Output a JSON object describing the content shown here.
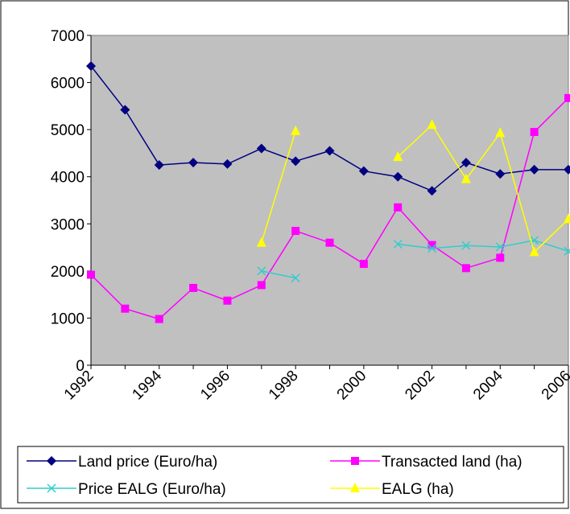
{
  "chart_data": {
    "type": "line",
    "categories": [
      "1992",
      null,
      "1994",
      null,
      "1996",
      null,
      "1998",
      null,
      "2000",
      null,
      "2002",
      null,
      "2004",
      null,
      "2006"
    ],
    "series": [
      {
        "name": "Land price (Euro/ha)",
        "color": "#000080",
        "marker": "diamond",
        "values": [
          6350,
          5420,
          4250,
          4300,
          4270,
          4600,
          4330,
          4550,
          4120,
          4000,
          3700,
          4300,
          4060,
          4150,
          4150
        ]
      },
      {
        "name": "Transacted land (ha)",
        "color": "#ff00ff",
        "marker": "square",
        "values": [
          1920,
          1200,
          980,
          1640,
          1370,
          1700,
          2850,
          2600,
          2150,
          3350,
          2550,
          2060,
          2280,
          4950,
          5670
        ]
      },
      {
        "name": "Price EALG (Euro/ha)",
        "color": "#33cccc",
        "marker": "x",
        "values": [
          null,
          null,
          null,
          null,
          null,
          2000,
          1850,
          null,
          null,
          2570,
          2480,
          2540,
          2510,
          2650,
          2420
        ]
      },
      {
        "name": "EALG (ha)",
        "color": "#ffff00",
        "marker": "triangle",
        "values": [
          null,
          null,
          null,
          null,
          null,
          2600,
          4970,
          null,
          null,
          4420,
          5100,
          3950,
          4930,
          2400,
          3100
        ]
      }
    ],
    "ylim": [
      0,
      7000
    ],
    "yticks": [
      0,
      1000,
      2000,
      3000,
      4000,
      5000,
      6000,
      7000
    ],
    "plot_background": "#c0c0c0"
  }
}
